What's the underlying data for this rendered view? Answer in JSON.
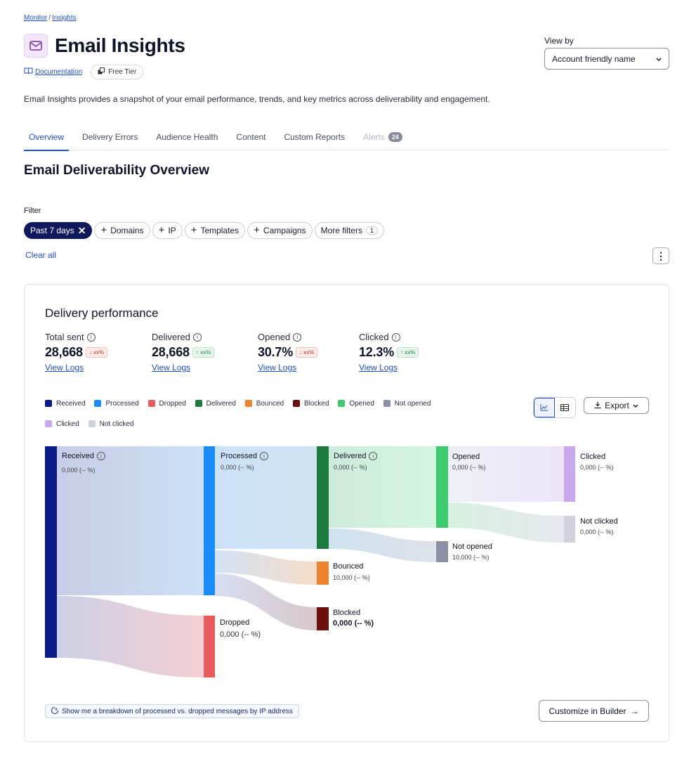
{
  "breadcrumb": {
    "items": [
      "Monitor",
      "Insights"
    ],
    "separator": "/"
  },
  "header": {
    "title": "Email Insights",
    "icon": "envelope-icon",
    "documentation_label": "Documentation",
    "tier_label": "Free Tier"
  },
  "view_by": {
    "label": "View by",
    "value": "Account friendly name"
  },
  "description": "Email Insights provides a snapshot of your email performance, trends, and key metrics across deliverability and engagement.",
  "tabs": [
    {
      "label": "Overview",
      "active": true
    },
    {
      "label": "Delivery Errors"
    },
    {
      "label": "Audience Health"
    },
    {
      "label": "Content"
    },
    {
      "label": "Custom Reports"
    },
    {
      "label": "Alerts",
      "count": "24",
      "disabled": true
    }
  ],
  "section_title": "Email Deliverability Overview",
  "filters": {
    "label": "Filter",
    "active_chip": "Past 7 days",
    "chips": [
      "Domains",
      "IP",
      "Templates",
      "Campaigns"
    ],
    "more_label": "More filters",
    "more_count": "1",
    "clear_label": "Clear all"
  },
  "card": {
    "title": "Delivery performance",
    "metrics": [
      {
        "label": "Total sent",
        "value": "28,668",
        "trend": "↓ xx%",
        "direction": "down",
        "link": "View Logs"
      },
      {
        "label": "Delivered",
        "value": "28,668",
        "trend": "↑ xx%",
        "direction": "up",
        "link": "View Logs"
      },
      {
        "label": "Opened",
        "value": "30.7%",
        "trend": "↓ xx%",
        "direction": "down",
        "link": "View Logs"
      },
      {
        "label": "Clicked",
        "value": "12.3%",
        "trend": "↑ xx%",
        "direction": "up",
        "link": "View Logs"
      }
    ],
    "legend": [
      {
        "label": "Received",
        "color": "#0b1a8a"
      },
      {
        "label": "Processed",
        "color": "#1a8cff"
      },
      {
        "label": "Dropped",
        "color": "#e85c5c"
      },
      {
        "label": "Delivered",
        "color": "#1e7a3c"
      },
      {
        "label": "Bounced",
        "color": "#f0822e"
      },
      {
        "label": "Blocked",
        "color": "#6e0f0f"
      },
      {
        "label": "Opened",
        "color": "#3ccc6e"
      },
      {
        "label": "Not opened",
        "color": "#8b90a2"
      },
      {
        "label": "Clicked",
        "color": "#c8a8ee"
      },
      {
        "label": "Not clicked",
        "color": "#cfd2dc"
      }
    ],
    "export_label": "Export",
    "nodes": {
      "received": {
        "label": "Received",
        "value": "0,000 (-- %)"
      },
      "processed": {
        "label": "Processed",
        "value": "0,000 (-- %)"
      },
      "delivered": {
        "label": "Delivered",
        "value": "0,000 (-- %)"
      },
      "opened": {
        "label": "Opened",
        "value": "0,000 (-- %)"
      },
      "clicked": {
        "label": "Clicked",
        "value": "0,000 (-- %)"
      },
      "not_clicked": {
        "label": "Not clicked",
        "value": "0,000 (-- %)"
      },
      "not_opened": {
        "label": "Not opened",
        "value": "10,000 (-- %)"
      },
      "bounced": {
        "label": "Bounced",
        "value": "10,000 (-- %)"
      },
      "blocked": {
        "label": "Blocked",
        "value": "0,000 (-- %)"
      },
      "dropped": {
        "label": "Dropped",
        "value": "0,000 (-- %)"
      }
    },
    "suggestion": "Show me a breakdown of processed vs. dropped messages by IP address",
    "builder_label": "Customize in Builder"
  }
}
